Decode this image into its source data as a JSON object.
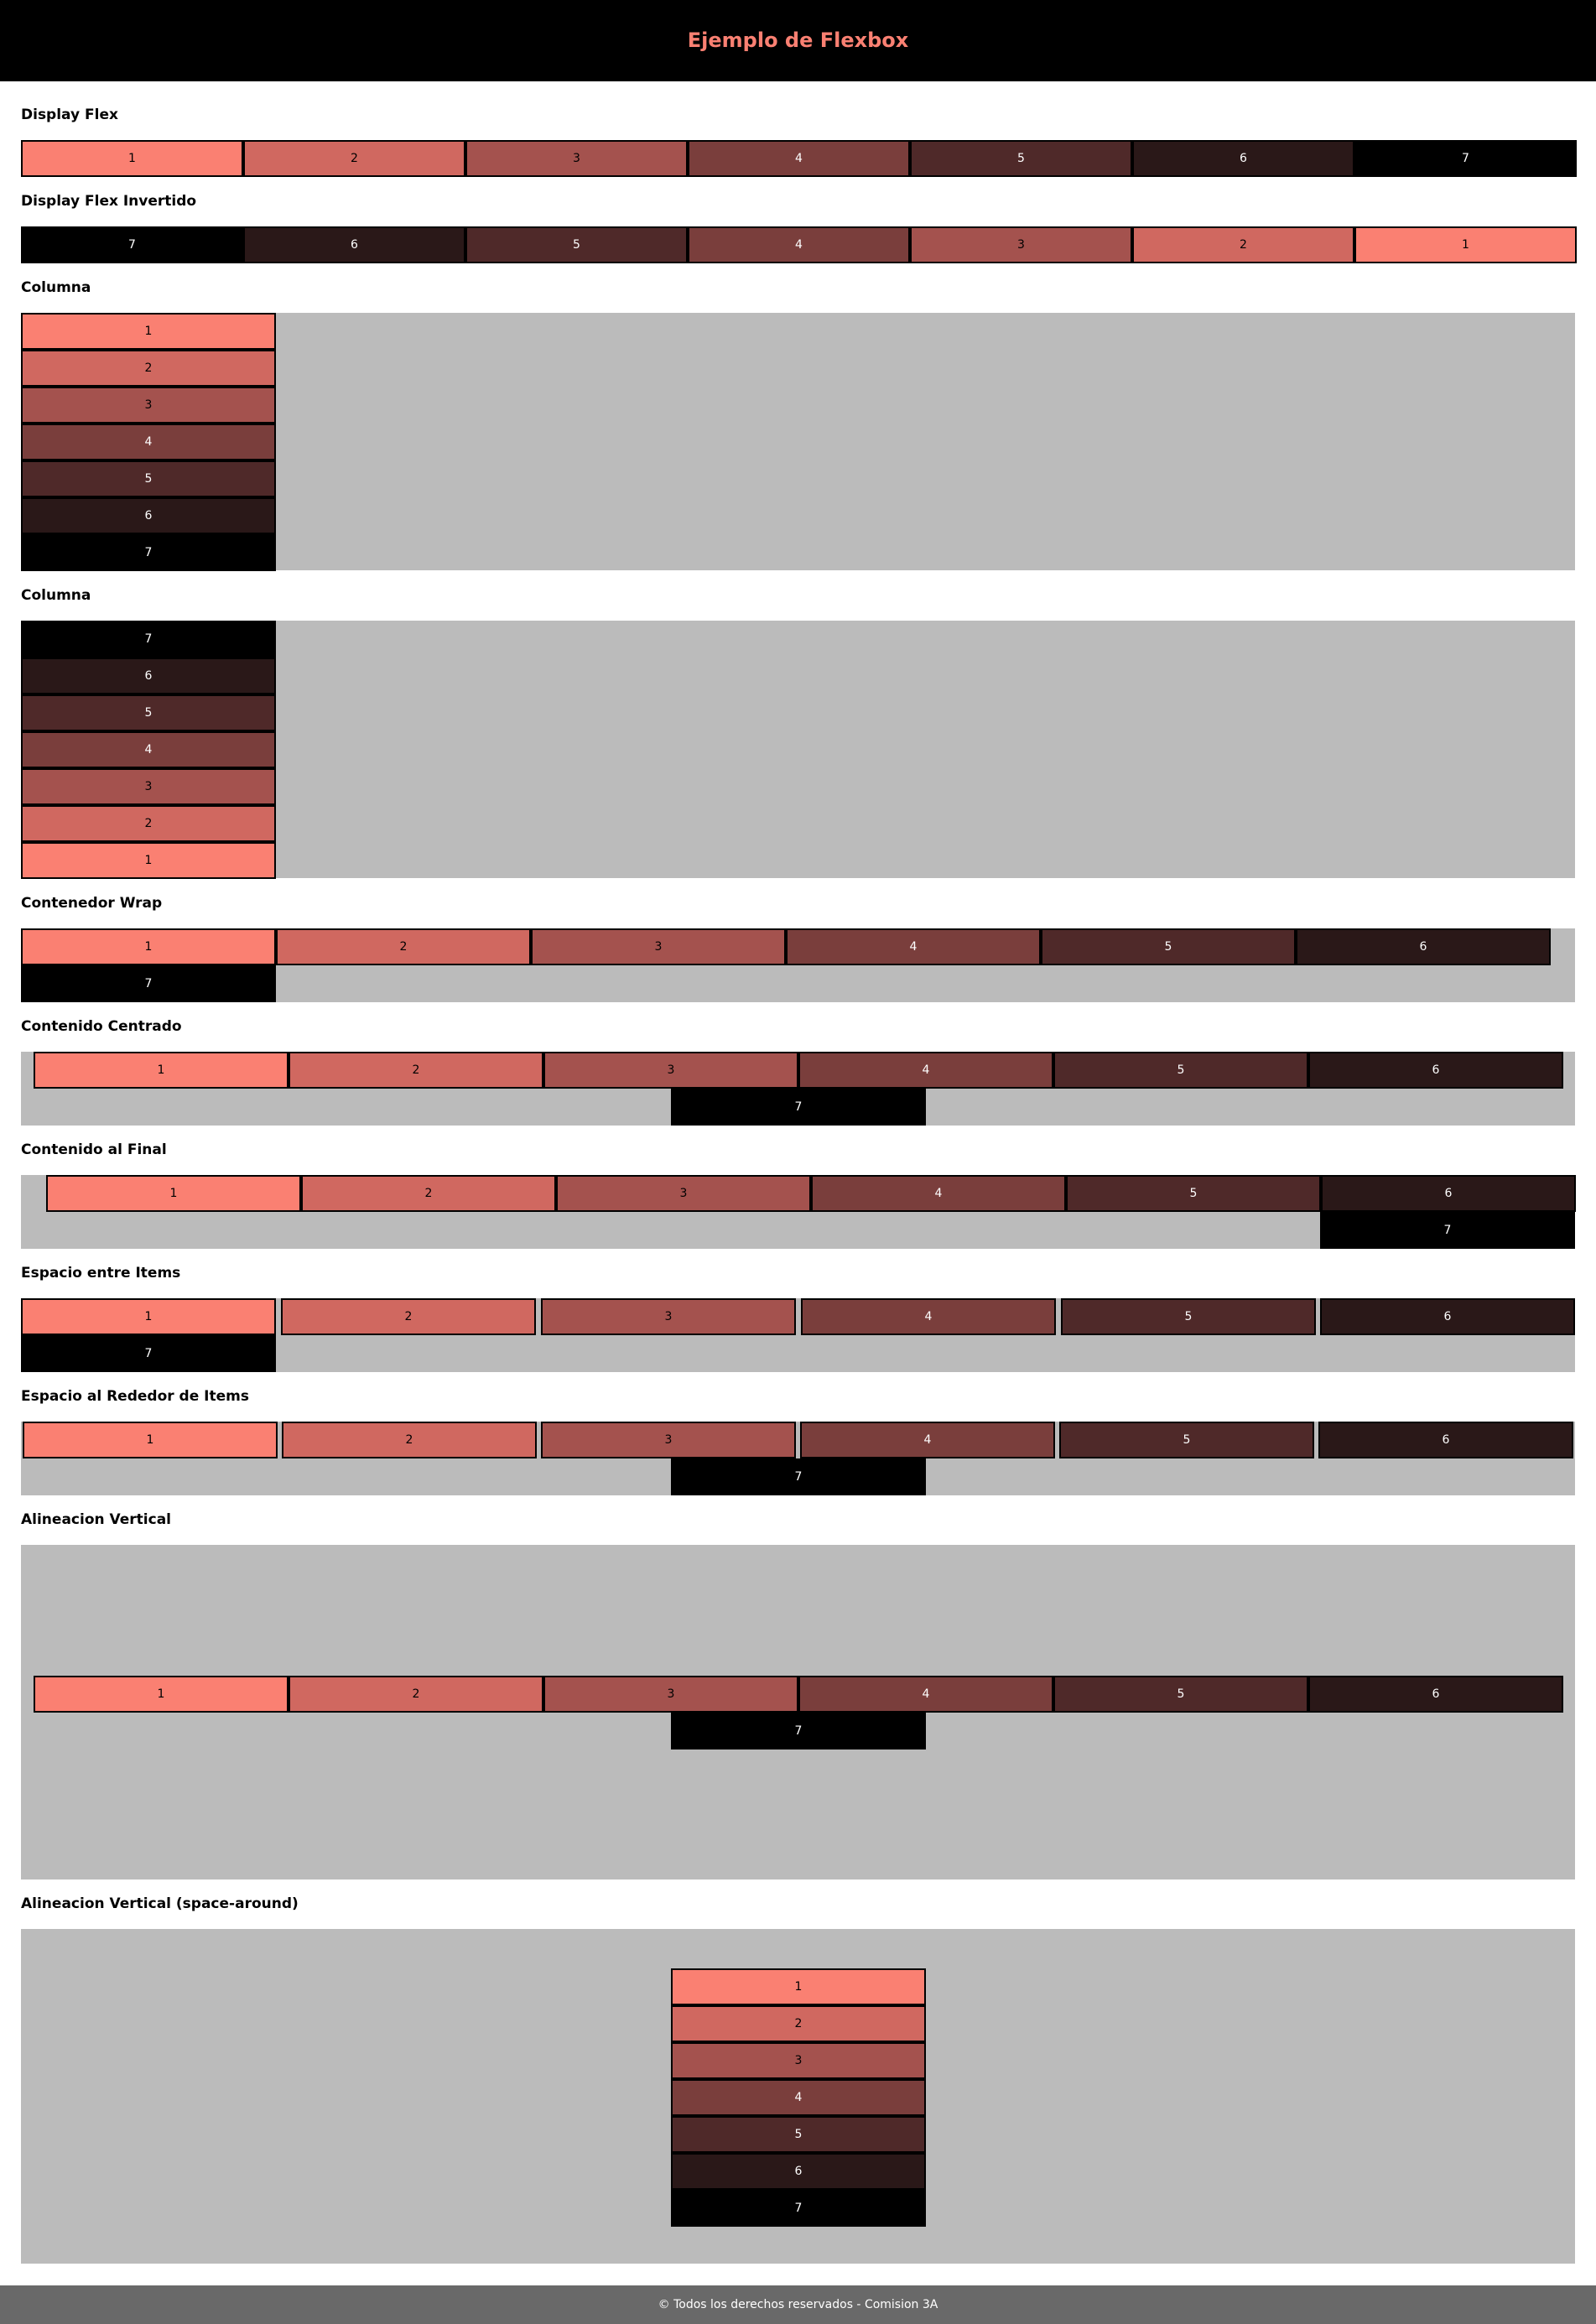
{
  "header": {
    "title": "Ejemplo de Flexbox"
  },
  "sections": [
    {
      "title": "Display Flex",
      "items": [
        "1",
        "2",
        "3",
        "4",
        "5",
        "6",
        "7"
      ]
    },
    {
      "title": "Display Flex Invertido",
      "items": [
        "7",
        "6",
        "5",
        "4",
        "3",
        "2",
        "1"
      ]
    },
    {
      "title": "Columna",
      "items": [
        "1",
        "2",
        "3",
        "4",
        "5",
        "6",
        "7"
      ]
    },
    {
      "title": "Columna",
      "items": [
        "7",
        "6",
        "5",
        "4",
        "3",
        "2",
        "1"
      ]
    },
    {
      "title": "Contenedor Wrap",
      "items": [
        "1",
        "2",
        "3",
        "4",
        "5",
        "6",
        "7"
      ]
    },
    {
      "title": "Contenido Centrado",
      "items": [
        "1",
        "2",
        "3",
        "4",
        "5",
        "6",
        "7"
      ]
    },
    {
      "title": "Contenido al Final",
      "items": [
        "1",
        "2",
        "3",
        "4",
        "5",
        "6",
        "7"
      ]
    },
    {
      "title": "Espacio entre Items",
      "items": [
        "1",
        "2",
        "3",
        "4",
        "5",
        "6",
        "7"
      ]
    },
    {
      "title": "Espacio al Rededor de Items",
      "items": [
        "1",
        "2",
        "3",
        "4",
        "5",
        "6",
        "7"
      ]
    },
    {
      "title": "Alineacion Vertical",
      "items": [
        "1",
        "2",
        "3",
        "4",
        "5",
        "6",
        "7"
      ]
    },
    {
      "title": "Alineacion Vertical (space-around)",
      "items": [
        "1",
        "2",
        "3",
        "4",
        "5",
        "6",
        "7"
      ]
    }
  ],
  "colors": {
    "header_bg": "#000000",
    "title": "#fa8072",
    "container_bg": "#bbbbbb",
    "footer_bg": "#696969",
    "item_1": "#fa8072",
    "item_2": "#d06860",
    "item_3": "#a4524e",
    "item_4": "#7a3e3c",
    "item_5": "#4f2929",
    "item_6": "#2a1818",
    "item_7": "#000000"
  },
  "footer": {
    "text": "© Todos los derechos reservados - Comision 3A"
  }
}
